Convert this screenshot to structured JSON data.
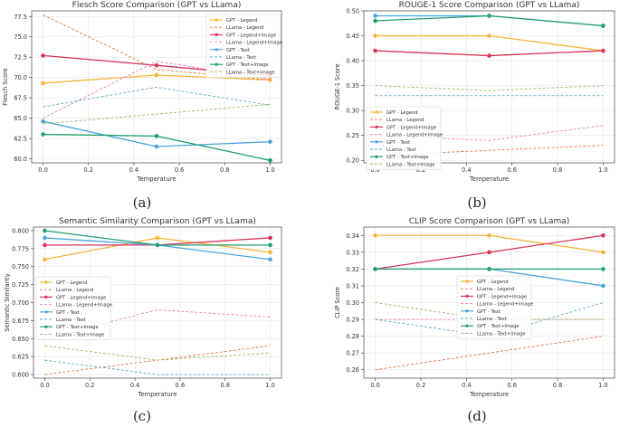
{
  "figure": {
    "captions": [
      "(a)",
      "(b)",
      "(c)",
      "(d)"
    ],
    "colors": {
      "gpt_legend": "#f5b53a",
      "llama_legend": "#e8743b",
      "gpt_legend_image": "#d8335a",
      "llama_legend_image": "#f27db0",
      "gpt_text": "#4aa3df",
      "llama_text": "#53b3bf",
      "gpt_text_image": "#1f9e6e",
      "llama_text_image": "#a0b860"
    }
  },
  "chart_data": [
    {
      "type": "line",
      "title": "Flesch Score Comparison (GPT vs LLama)",
      "xlabel": "Temperature",
      "ylabel": "Flesch Score",
      "x": [
        0.0,
        0.5,
        1.0
      ],
      "xlim": [
        -0.05,
        1.05
      ],
      "ylim": [
        59.5,
        78.2
      ],
      "xticks": [
        "0.0",
        "0.2",
        "0.4",
        "0.6",
        "0.8",
        "1.0"
      ],
      "yticks": [
        "60.0",
        "62.5",
        "65.0",
        "67.5",
        "70.0",
        "72.5",
        "75.0",
        "77.5"
      ],
      "grid": true,
      "legend_position": "top-right",
      "series": [
        {
          "name": "GPT - Legend",
          "values": [
            69.3,
            70.3,
            69.7
          ]
        },
        {
          "name": "LLama - Legend",
          "values": [
            77.7,
            71.0,
            69.7
          ]
        },
        {
          "name": "GPT - Legend+Image",
          "values": [
            72.7,
            71.5,
            70.2
          ]
        },
        {
          "name": "LLama - Legend+Image",
          "values": [
            65.0,
            72.0,
            69.8
          ]
        },
        {
          "name": "GPT - Text",
          "values": [
            64.6,
            61.5,
            62.1
          ]
        },
        {
          "name": "LLama - Text",
          "values": [
            66.4,
            68.8,
            66.6
          ]
        },
        {
          "name": "GPT - Text+Image",
          "values": [
            63.0,
            62.8,
            59.8
          ]
        },
        {
          "name": "LLama - Text+Image",
          "values": [
            64.3,
            65.5,
            66.7
          ]
        }
      ]
    },
    {
      "type": "line",
      "title": "ROUGE-1 Score Comparison (GPT vs LLama)",
      "xlabel": "Temperature",
      "ylabel": "ROUGE-1 Score",
      "x": [
        0.0,
        0.5,
        1.0
      ],
      "xlim": [
        -0.05,
        1.05
      ],
      "ylim": [
        0.195,
        0.5
      ],
      "xticks": [
        "0.0",
        "0.2",
        "0.4",
        "0.6",
        "0.8",
        "1.0"
      ],
      "yticks": [
        "0.20",
        "0.25",
        "0.30",
        "0.35",
        "0.40",
        "0.45",
        "0.50"
      ],
      "grid": true,
      "legend_position": "lower-left",
      "series": [
        {
          "name": "GPT - Legend",
          "values": [
            0.45,
            0.45,
            0.42
          ]
        },
        {
          "name": "LLama - Legend",
          "values": [
            0.21,
            0.22,
            0.23
          ]
        },
        {
          "name": "GPT - Legend+Image",
          "values": [
            0.42,
            0.41,
            0.42
          ]
        },
        {
          "name": "LLama - Legend+Image",
          "values": [
            0.25,
            0.24,
            0.27
          ]
        },
        {
          "name": "GPT - Text",
          "values": [
            0.49,
            0.49,
            0.47
          ]
        },
        {
          "name": "LLama - Text",
          "values": [
            0.33,
            0.33,
            0.33
          ]
        },
        {
          "name": "GPT - Text+Image",
          "values": [
            0.48,
            0.49,
            0.47
          ]
        },
        {
          "name": "LLama - Text+Image",
          "values": [
            0.35,
            0.34,
            0.35
          ]
        }
      ]
    },
    {
      "type": "line",
      "title": "Semantic Similarity Comparison (GPT vs LLama)",
      "xlabel": "Temperature",
      "ylabel": "Semantic Similarity",
      "x": [
        0.0,
        0.5,
        1.0
      ],
      "xlim": [
        -0.05,
        1.05
      ],
      "ylim": [
        0.595,
        0.805
      ],
      "xticks": [
        "0.0",
        "0.2",
        "0.4",
        "0.6",
        "0.8",
        "1.0"
      ],
      "yticks": [
        "0.600",
        "0.625",
        "0.650",
        "0.675",
        "0.700",
        "0.725",
        "0.750",
        "0.775",
        "0.800"
      ],
      "grid": true,
      "legend_position": "center-left",
      "series": [
        {
          "name": "GPT - Legend",
          "values": [
            0.76,
            0.79,
            0.77
          ]
        },
        {
          "name": "LLama - Legend",
          "values": [
            0.6,
            0.62,
            0.64
          ]
        },
        {
          "name": "GPT - Legend+Image",
          "values": [
            0.78,
            0.78,
            0.79
          ]
        },
        {
          "name": "LLama - Legend+Image",
          "values": [
            0.65,
            0.69,
            0.68
          ]
        },
        {
          "name": "GPT - Text",
          "values": [
            0.79,
            0.78,
            0.76
          ]
        },
        {
          "name": "LLama - Text",
          "values": [
            0.62,
            0.6,
            0.6
          ]
        },
        {
          "name": "GPT - Text+Image",
          "values": [
            0.8,
            0.78,
            0.78
          ]
        },
        {
          "name": "LLama - Text+Image",
          "values": [
            0.64,
            0.62,
            0.63
          ]
        }
      ]
    },
    {
      "type": "line",
      "title": "CLIP Score Comparison (GPT vs LLama)",
      "xlabel": "Temperature",
      "ylabel": "CLIP Score",
      "x": [
        0.0,
        0.5,
        1.0
      ],
      "xlim": [
        -0.05,
        1.05
      ],
      "ylim": [
        0.255,
        0.345
      ],
      "xticks": [
        "0.0",
        "0.2",
        "0.4",
        "0.6",
        "0.8",
        "1.0"
      ],
      "yticks": [
        "0.26",
        "0.27",
        "0.28",
        "0.29",
        "0.30",
        "0.31",
        "0.32",
        "0.33",
        "0.34"
      ],
      "grid": true,
      "legend_position": "center",
      "series": [
        {
          "name": "GPT - Legend",
          "values": [
            0.34,
            0.34,
            0.33
          ]
        },
        {
          "name": "LLama - Legend",
          "values": [
            0.26,
            0.27,
            0.28
          ]
        },
        {
          "name": "GPT - Legend+Image",
          "values": [
            0.32,
            0.33,
            0.34
          ]
        },
        {
          "name": "LLama - Legend+Image",
          "values": [
            0.29,
            0.29,
            0.29
          ]
        },
        {
          "name": "GPT - Text",
          "values": [
            0.32,
            0.32,
            0.31
          ]
        },
        {
          "name": "LLama - Text",
          "values": [
            0.29,
            0.28,
            0.3
          ]
        },
        {
          "name": "GPT - Text+Image",
          "values": [
            0.32,
            0.32,
            0.32
          ]
        },
        {
          "name": "LLama - Text+Image",
          "values": [
            0.3,
            0.29,
            0.29
          ]
        }
      ]
    }
  ]
}
